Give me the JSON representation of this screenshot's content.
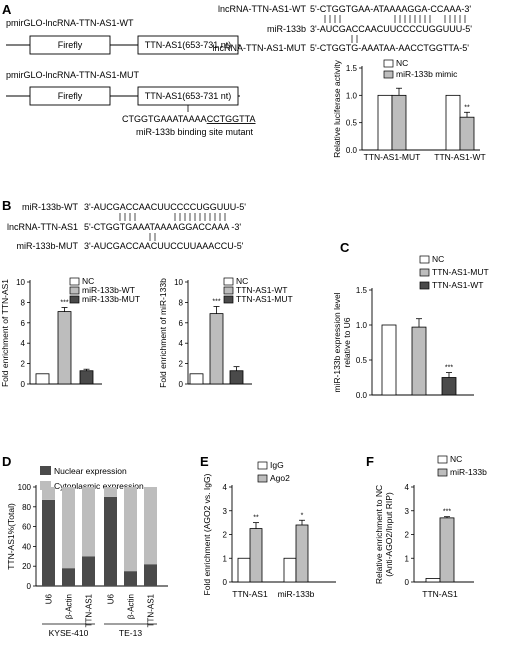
{
  "panels": {
    "A": {
      "letter": "A",
      "construct_wt": "pmirGLO-lncRNA-TTN-AS1-WT",
      "construct_mut": "pmirGLO-lncRNA-TTN-AS1-MUT",
      "firefly": "Firefly",
      "insert": "TTN-AS1(653-731 nt)",
      "mut_seq_prefix": "CTGGTGAAATAAAA",
      "mut_seq_underlined": "CCTGGTTA",
      "mut_site_label": "miR-133b binding site mutant",
      "align": {
        "wt_label": "lncRNA-TTN-AS1-WT",
        "wt_seq": "5'-CTGGTGAA-ATAAAAGGA-CCAAA-3'",
        "mir_label": "miR-133b",
        "mir_seq": "3'-AUCGACCAACUUCCCCUGGUUU-5'",
        "mut_label": "lncRNA-TTN-AS1-MUT",
        "mut_seq": "5'-CTGGTG-AAATAA-AACCTGGTTA-5'"
      }
    },
    "B": {
      "letter": "B",
      "align": {
        "row1_label": "miR-133b-WT",
        "row1_seq": "3'-AUCGACCAACUUCCCCUGGUUU-5'",
        "row2_label": "lncRNA-TTN-AS1",
        "row2_seq": "5'-CTGGTGAAATAAAAGGACCAAA -3'",
        "row3_label": "miR-133b-MUT",
        "row3_seq": "3'-AUCGACCAACUUCCUUAAACCU-5'"
      }
    },
    "C": {
      "letter": "C"
    },
    "D": {
      "letter": "D"
    },
    "E": {
      "letter": "E"
    },
    "F": {
      "letter": "F"
    }
  },
  "colors": {
    "white": "#ffffff",
    "light_gray": "#bdbdbd",
    "dark_gray": "#4a4a4a",
    "black": "#000000"
  },
  "chart_data": [
    {
      "id": "A",
      "type": "bar",
      "categories": [
        "TTN-AS1-MUT",
        "TTN-AS1-WT"
      ],
      "series": [
        {
          "name": "NC",
          "values": [
            1.0,
            1.0
          ],
          "errors": [
            0,
            0
          ],
          "color": "#ffffff"
        },
        {
          "name": "miR-133b mimic",
          "values": [
            1.0,
            0.6
          ],
          "errors": [
            0.13,
            0.09
          ],
          "color": "#bdbdbd"
        }
      ],
      "annotations": [
        {
          "category": 1,
          "series": 1,
          "text": "**"
        }
      ],
      "ylabel": "Relative luciferase activity",
      "ylim": [
        0,
        1.5
      ],
      "yticks": [
        "0.0",
        "0.5",
        "1.0",
        "1.5"
      ],
      "legend": "top-left"
    },
    {
      "id": "B1",
      "type": "bar",
      "categories": [
        ""
      ],
      "series": [
        {
          "name": "NC",
          "values": [
            1.0
          ],
          "errors": [
            0
          ],
          "color": "#ffffff"
        },
        {
          "name": "miR-133b-WT",
          "values": [
            7.1
          ],
          "errors": [
            0.4
          ],
          "color": "#bdbdbd"
        },
        {
          "name": "miR-133b-MUT",
          "values": [
            1.3
          ],
          "errors": [
            0.15
          ],
          "color": "#4a4a4a"
        }
      ],
      "annotations": [
        {
          "category": 0,
          "series": 1,
          "text": "***"
        }
      ],
      "ylabel": "Fold enrichment of TTN-AS1",
      "ylim": [
        0,
        10
      ],
      "yticks": [
        "0",
        "2",
        "4",
        "6",
        "8",
        "10"
      ],
      "legend": "top-right"
    },
    {
      "id": "B2",
      "type": "bar",
      "categories": [
        ""
      ],
      "series": [
        {
          "name": "NC",
          "values": [
            1.0
          ],
          "errors": [
            0
          ],
          "color": "#ffffff"
        },
        {
          "name": "TTN-AS1-WT",
          "values": [
            6.9
          ],
          "errors": [
            0.7
          ],
          "color": "#bdbdbd"
        },
        {
          "name": "TTN-AS1-MUT",
          "values": [
            1.3
          ],
          "errors": [
            0.4
          ],
          "color": "#4a4a4a"
        }
      ],
      "annotations": [
        {
          "category": 0,
          "series": 1,
          "text": "***"
        }
      ],
      "ylabel": "Fold enrichment of miR-133b",
      "ylim": [
        0,
        10
      ],
      "yticks": [
        "0",
        "2",
        "4",
        "6",
        "8",
        "10"
      ],
      "legend": "top-right"
    },
    {
      "id": "C",
      "type": "bar",
      "categories": [
        ""
      ],
      "series": [
        {
          "name": "NC",
          "values": [
            1.0
          ],
          "errors": [
            0
          ],
          "color": "#ffffff"
        },
        {
          "name": "TTN-AS1-MUT",
          "values": [
            0.97
          ],
          "errors": [
            0.12
          ],
          "color": "#bdbdbd"
        },
        {
          "name": "TTN-AS1-WT",
          "values": [
            0.25
          ],
          "errors": [
            0.07
          ],
          "color": "#4a4a4a"
        }
      ],
      "annotations": [
        {
          "category": 0,
          "series": 2,
          "text": "***"
        }
      ],
      "ylabel": "miR-133b expression level relative to U6",
      "ylim": [
        0,
        1.5
      ],
      "yticks": [
        "0.0",
        "0.5",
        "1.0",
        "1.5"
      ],
      "legend": "top-right"
    },
    {
      "id": "D",
      "type": "bar",
      "stacked": true,
      "categories": [
        "U6",
        "β-Actin",
        "TTN-AS1",
        "U6",
        "β-Actin",
        "TTN-AS1"
      ],
      "groups": [
        {
          "label": "KYSE-410",
          "span": [
            0,
            2
          ]
        },
        {
          "label": "TE-13",
          "span": [
            3,
            5
          ]
        }
      ],
      "series": [
        {
          "name": "Nuclear expression",
          "values": [
            87,
            18,
            30,
            90,
            15,
            22
          ],
          "color": "#4a4a4a"
        },
        {
          "name": "Cytoplasmic expression",
          "values": [
            13,
            82,
            70,
            10,
            85,
            78
          ],
          "color": "#bdbdbd"
        }
      ],
      "ylabel": "TTN-AS1%(Total)",
      "ylim": [
        0,
        100
      ],
      "yticks": [
        "0",
        "20",
        "40",
        "60",
        "80",
        "100"
      ],
      "legend": "top"
    },
    {
      "id": "E",
      "type": "bar",
      "categories": [
        "TTN-AS1",
        "miR-133b"
      ],
      "series": [
        {
          "name": "IgG",
          "values": [
            1.0,
            1.0
          ],
          "errors": [
            0,
            0
          ],
          "color": "#ffffff"
        },
        {
          "name": "Ago2",
          "values": [
            2.25,
            2.4
          ],
          "errors": [
            0.25,
            0.2
          ],
          "color": "#bdbdbd"
        }
      ],
      "annotations": [
        {
          "category": 0,
          "series": 1,
          "text": "**"
        },
        {
          "category": 1,
          "series": 1,
          "text": "*"
        }
      ],
      "ylabel": "Fold enrichment (AGO2 vs. IgG)",
      "ylim": [
        0,
        4
      ],
      "yticks": [
        "0",
        "1",
        "2",
        "3",
        "4"
      ],
      "legend": "top-left"
    },
    {
      "id": "F",
      "type": "bar",
      "categories": [
        "TTN-AS1"
      ],
      "series": [
        {
          "name": "NC",
          "values": [
            0.15
          ],
          "errors": [
            0
          ],
          "color": "#ffffff"
        },
        {
          "name": "miR-133b",
          "values": [
            2.7
          ],
          "errors": [
            0.05
          ],
          "color": "#bdbdbd"
        }
      ],
      "annotations": [
        {
          "category": 0,
          "series": 1,
          "text": "***"
        }
      ],
      "ylabel": "Relative enrichment to NC (Anti-AGO2/Input RIP)",
      "ylim": [
        0,
        4
      ],
      "yticks": [
        "0",
        "1",
        "2",
        "3",
        "4"
      ],
      "legend": "top"
    }
  ]
}
